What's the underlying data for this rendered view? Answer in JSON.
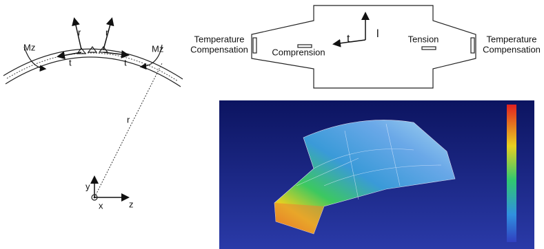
{
  "beam_diagram": {
    "moment_left": "Mz",
    "moment_right": "Mz",
    "radial_left": "r",
    "radial_right": "r",
    "tangential_left": "t",
    "tangential_right": "t",
    "radius": "r",
    "axis_y": "y",
    "axis_x": "x",
    "axis_z": "z"
  },
  "gauge_diagram": {
    "compensation_left": [
      "Temperature",
      "Compensation"
    ],
    "compensation_right": [
      "Temperature",
      "Compensation"
    ],
    "compression": "Comprension",
    "tension": "Tension",
    "axis_t": "t",
    "axis_l": "l"
  }
}
